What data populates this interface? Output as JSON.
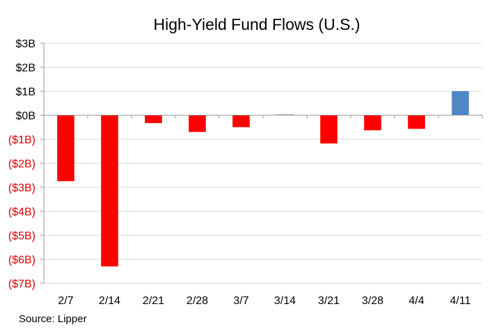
{
  "chart_data": {
    "type": "bar",
    "title": "High-Yield  Fund Flows (U.S.)",
    "categories": [
      "2/7",
      "2/14",
      "2/21",
      "2/28",
      "3/7",
      "3/14",
      "3/21",
      "3/28",
      "4/4",
      "4/11"
    ],
    "series": [
      {
        "values": [
          -2.75,
          -6.3,
          -0.33,
          -0.7,
          -0.5,
          0.03,
          -1.18,
          -0.63,
          -0.57,
          1.0
        ]
      }
    ],
    "ylim": [
      -7,
      3
    ],
    "yticks": [
      3,
      2,
      1,
      0,
      -1,
      -2,
      -3,
      -4,
      -5,
      -6,
      -7
    ],
    "ytick_labels": [
      "$3B",
      "$2B",
      "$1B",
      "$0B",
      "($1B)",
      "($2B)",
      "($3B)",
      "($4B)",
      "($5B)",
      "($6B)",
      "($7B)"
    ],
    "grid": true,
    "colors": {
      "negative": "#ff0000",
      "positive": "#4f86c6",
      "negative_label": "#e00000",
      "positive_label": "#000000",
      "grid": "#d9d9d9",
      "axis": "#9a9a9a"
    }
  },
  "source": "Source: Lipper"
}
